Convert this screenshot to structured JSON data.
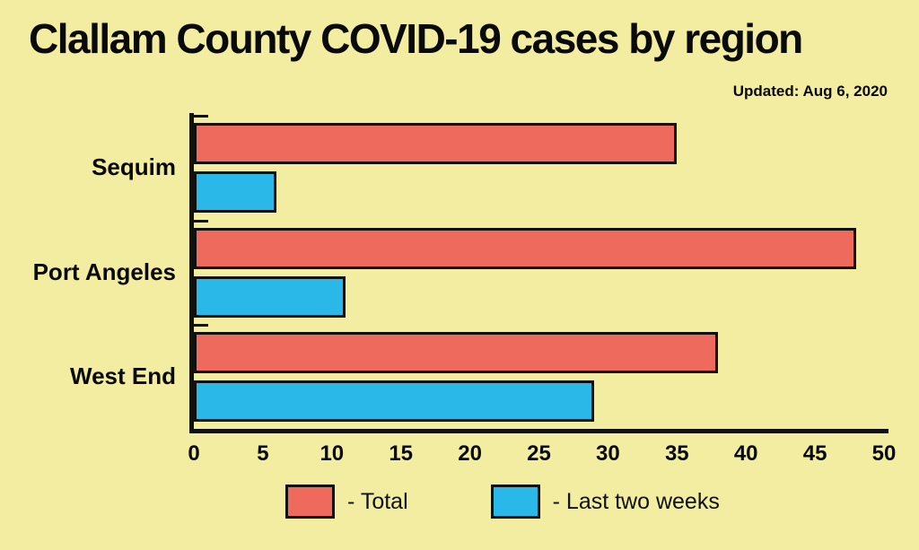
{
  "header": {
    "updated": "Updated: Aug 6, 2020"
  },
  "colors": {
    "background": "#f2eda0",
    "axis": "#111111",
    "total_bar": "#ee6a5c",
    "last_two_weeks_bar": "#29b8e8"
  },
  "chart_data": {
    "type": "bar",
    "orientation": "horizontal",
    "title": "Clallam County COVID-19 cases by region",
    "categories": [
      "Sequim",
      "Port Angeles",
      "West End"
    ],
    "series": [
      {
        "name": "Total",
        "color": "#ee6a5c",
        "values": [
          35,
          48,
          38
        ]
      },
      {
        "name": "Last two weeks",
        "color": "#29b8e8",
        "values": [
          6,
          11,
          29
        ]
      }
    ],
    "xlim": [
      0,
      50
    ],
    "xticks": [
      0,
      5,
      10,
      15,
      20,
      25,
      30,
      35,
      40,
      45,
      50
    ],
    "grid": false,
    "legend_position": "bottom",
    "legend": [
      {
        "swatch": "#ee6a5c",
        "label": "- Total"
      },
      {
        "swatch": "#29b8e8",
        "label": "- Last two weeks"
      }
    ]
  }
}
